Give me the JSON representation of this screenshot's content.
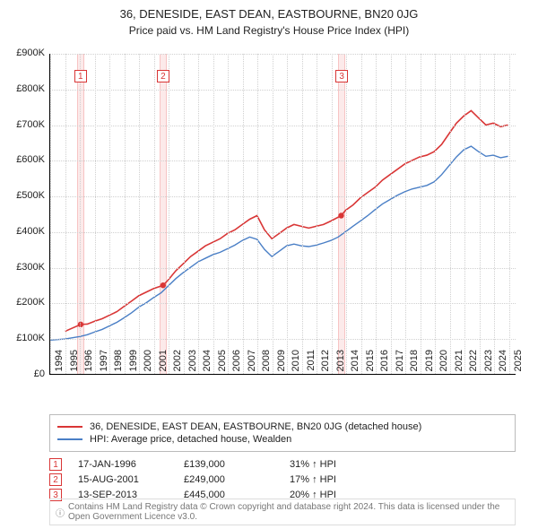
{
  "title": {
    "main": "36, DENESIDE, EAST DEAN, EASTBOURNE, BN20 0JG",
    "sub": "Price paid vs. HM Land Registry's House Price Index (HPI)"
  },
  "chart": {
    "type": "line",
    "background_color": "#ffffff",
    "grid_color": "#d0d0d0",
    "x_range": [
      1994,
      2025.5
    ],
    "y_range": [
      0,
      900
    ],
    "y_ticks": [
      0,
      100,
      200,
      300,
      400,
      500,
      600,
      700,
      800,
      900
    ],
    "y_tick_labels": [
      "£0",
      "£100K",
      "£200K",
      "£300K",
      "£400K",
      "£500K",
      "£600K",
      "£700K",
      "£800K",
      "£900K"
    ],
    "x_ticks": [
      1994,
      1995,
      1996,
      1997,
      1998,
      1999,
      2000,
      2001,
      2002,
      2003,
      2004,
      2005,
      2006,
      2007,
      2008,
      2009,
      2010,
      2011,
      2012,
      2013,
      2014,
      2015,
      2016,
      2017,
      2018,
      2019,
      2020,
      2021,
      2022,
      2023,
      2024,
      2025
    ],
    "marker_highlight_bg": "#fceaea",
    "marker_highlight_border": "#f7c4c4",
    "series": [
      {
        "id": "price_paid",
        "label": "36, DENESIDE, EAST DEAN, EASTBOURNE, BN20 0JG (detached house)",
        "color": "#d93636",
        "line_width": 1.6,
        "points": [
          [
            1995.0,
            120
          ],
          [
            1996.05,
            139
          ],
          [
            1996.5,
            140
          ],
          [
            1997,
            148
          ],
          [
            1997.5,
            155
          ],
          [
            1998,
            165
          ],
          [
            1998.5,
            175
          ],
          [
            1999,
            190
          ],
          [
            1999.5,
            205
          ],
          [
            2000,
            220
          ],
          [
            2000.5,
            230
          ],
          [
            2001,
            240
          ],
          [
            2001.63,
            249
          ],
          [
            2002,
            265
          ],
          [
            2002.5,
            290
          ],
          [
            2003,
            310
          ],
          [
            2003.5,
            330
          ],
          [
            2004,
            345
          ],
          [
            2004.5,
            360
          ],
          [
            2005,
            370
          ],
          [
            2005.5,
            380
          ],
          [
            2006,
            395
          ],
          [
            2006.5,
            405
          ],
          [
            2007,
            420
          ],
          [
            2007.5,
            435
          ],
          [
            2008,
            445
          ],
          [
            2008.5,
            405
          ],
          [
            2009,
            380
          ],
          [
            2009.5,
            395
          ],
          [
            2010,
            410
          ],
          [
            2010.5,
            420
          ],
          [
            2011,
            415
          ],
          [
            2011.5,
            410
          ],
          [
            2012,
            415
          ],
          [
            2012.5,
            420
          ],
          [
            2013,
            430
          ],
          [
            2013.7,
            445
          ],
          [
            2014,
            460
          ],
          [
            2014.5,
            475
          ],
          [
            2015,
            495
          ],
          [
            2015.5,
            510
          ],
          [
            2016,
            525
          ],
          [
            2016.5,
            545
          ],
          [
            2017,
            560
          ],
          [
            2017.5,
            575
          ],
          [
            2018,
            590
          ],
          [
            2018.5,
            600
          ],
          [
            2019,
            610
          ],
          [
            2019.5,
            615
          ],
          [
            2020,
            625
          ],
          [
            2020.5,
            645
          ],
          [
            2021,
            675
          ],
          [
            2021.5,
            705
          ],
          [
            2022,
            725
          ],
          [
            2022.5,
            740
          ],
          [
            2023,
            720
          ],
          [
            2023.5,
            700
          ],
          [
            2024,
            705
          ],
          [
            2024.5,
            695
          ],
          [
            2025,
            700
          ]
        ],
        "sale_markers": [
          {
            "num": "1",
            "x": 1996.05,
            "y": 139
          },
          {
            "num": "2",
            "x": 2001.63,
            "y": 249
          },
          {
            "num": "3",
            "x": 2013.7,
            "y": 445
          }
        ]
      },
      {
        "id": "hpi",
        "label": "HPI: Average price, detached house, Wealden",
        "color": "#4a7fc6",
        "line_width": 1.4,
        "points": [
          [
            1994,
            95
          ],
          [
            1995,
            98
          ],
          [
            1996,
            105
          ],
          [
            1996.5,
            110
          ],
          [
            1997,
            118
          ],
          [
            1997.5,
            125
          ],
          [
            1998,
            135
          ],
          [
            1998.5,
            145
          ],
          [
            1999,
            158
          ],
          [
            1999.5,
            172
          ],
          [
            2000,
            188
          ],
          [
            2000.5,
            200
          ],
          [
            2001,
            215
          ],
          [
            2001.5,
            228
          ],
          [
            2002,
            248
          ],
          [
            2002.5,
            268
          ],
          [
            2003,
            285
          ],
          [
            2003.5,
            300
          ],
          [
            2004,
            315
          ],
          [
            2004.5,
            325
          ],
          [
            2005,
            335
          ],
          [
            2005.5,
            342
          ],
          [
            2006,
            352
          ],
          [
            2006.5,
            362
          ],
          [
            2007,
            375
          ],
          [
            2007.5,
            385
          ],
          [
            2008,
            378
          ],
          [
            2008.5,
            350
          ],
          [
            2009,
            330
          ],
          [
            2009.5,
            345
          ],
          [
            2010,
            360
          ],
          [
            2010.5,
            365
          ],
          [
            2011,
            360
          ],
          [
            2011.5,
            358
          ],
          [
            2012,
            362
          ],
          [
            2012.5,
            368
          ],
          [
            2013,
            375
          ],
          [
            2013.5,
            385
          ],
          [
            2014,
            400
          ],
          [
            2014.5,
            415
          ],
          [
            2015,
            430
          ],
          [
            2015.5,
            445
          ],
          [
            2016,
            462
          ],
          [
            2016.5,
            478
          ],
          [
            2017,
            490
          ],
          [
            2017.5,
            502
          ],
          [
            2018,
            512
          ],
          [
            2018.5,
            520
          ],
          [
            2019,
            525
          ],
          [
            2019.5,
            530
          ],
          [
            2020,
            540
          ],
          [
            2020.5,
            560
          ],
          [
            2021,
            585
          ],
          [
            2021.5,
            610
          ],
          [
            2022,
            630
          ],
          [
            2022.5,
            640
          ],
          [
            2023,
            625
          ],
          [
            2023.5,
            612
          ],
          [
            2024,
            615
          ],
          [
            2024.5,
            608
          ],
          [
            2025,
            612
          ]
        ]
      }
    ]
  },
  "legend": {
    "items": [
      {
        "color": "#d93636",
        "label": "36, DENESIDE, EAST DEAN, EASTBOURNE, BN20 0JG (detached house)"
      },
      {
        "color": "#4a7fc6",
        "label": "HPI: Average price, detached house, Wealden"
      }
    ]
  },
  "events": [
    {
      "num": "1",
      "date": "17-JAN-1996",
      "price": "£139,000",
      "delta": "31% ↑ HPI"
    },
    {
      "num": "2",
      "date": "15-AUG-2001",
      "price": "£249,000",
      "delta": "17% ↑ HPI"
    },
    {
      "num": "3",
      "date": "13-SEP-2013",
      "price": "£445,000",
      "delta": "20% ↑ HPI"
    }
  ],
  "footer": {
    "icon": "ⓘ",
    "text": "Contains HM Land Registry data © Crown copyright and database right 2024. This data is licensed under the Open Government Licence v3.0."
  }
}
